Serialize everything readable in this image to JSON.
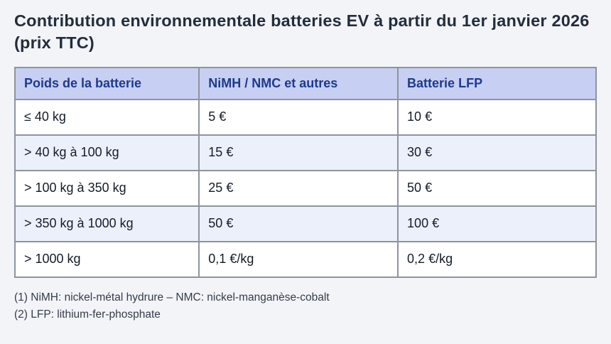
{
  "page": {
    "title": "Contribution environnementale batteries EV à partir du 1er janvier 2026 (prix TTC)"
  },
  "table": {
    "columns": [
      "Poids de la batterie",
      "NiMH / NMC et autres",
      "Batterie LFP"
    ],
    "rows": [
      [
        "≤ 40 kg",
        "5 €",
        "10 €"
      ],
      [
        "> 40 kg à 100 kg",
        "15 €",
        "30 €"
      ],
      [
        "> 100 kg à 350 kg",
        "25 €",
        "50 €"
      ],
      [
        "> 350 kg à 1000 kg",
        "50 €",
        "100 €"
      ],
      [
        "> 1000 kg",
        "0,1 €/kg",
        "0,2 €/kg"
      ]
    ]
  },
  "footnotes": [
    "(1) NiMH: nickel-métal hydrure – NMC: nickel-manganèse-cobalt",
    "(2) LFP: lithium-fer-phosphate"
  ],
  "colors": {
    "page_background": "#f2f4f8",
    "header_background": "#c7cff3",
    "header_text": "#1e3a8c",
    "stripe_row_background": "#ecf0fb",
    "table_border": "#8e949e",
    "title_text": "#232d3c",
    "body_text": "#141c28",
    "footnote_text": "#343d4a"
  }
}
